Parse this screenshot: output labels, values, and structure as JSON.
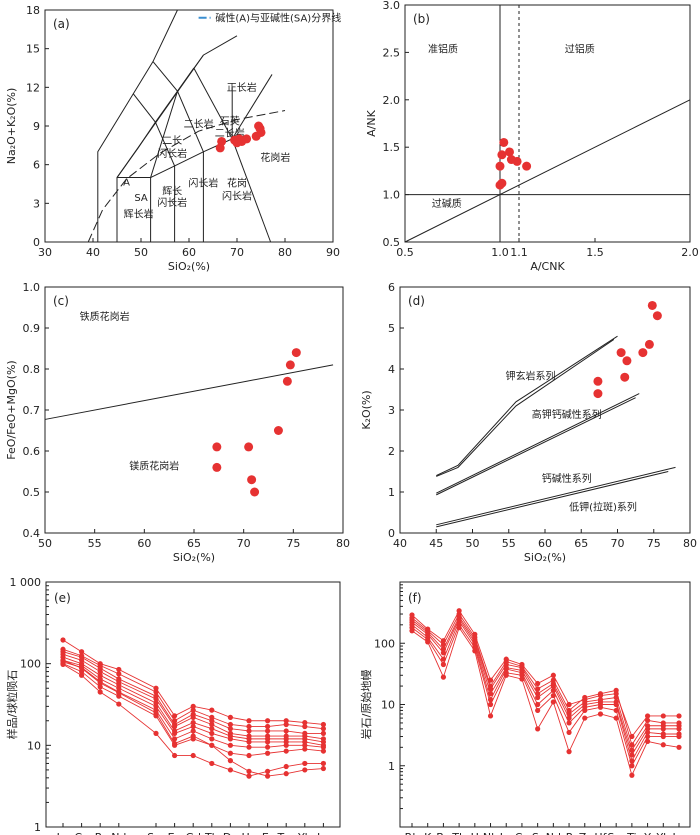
{
  "chart_data": [
    {
      "id": "a",
      "panel_label": "(a)",
      "type": "scatter",
      "xlabel": "SiO₂(%)",
      "ylabel": "Na₂O+K₂O(%)",
      "xlim": [
        30,
        90
      ],
      "ylim": [
        0,
        18
      ],
      "xticks": [
        30,
        40,
        50,
        60,
        70,
        80,
        90
      ],
      "yticks": [
        0,
        3,
        6,
        9,
        12,
        15,
        18
      ],
      "legend": "碱性(A)与亚碱性(SA)分界线",
      "points": [
        [
          66.5,
          7.3
        ],
        [
          66.8,
          7.8
        ],
        [
          69.5,
          7.9
        ],
        [
          70.0,
          7.7
        ],
        [
          70.5,
          8.0
        ],
        [
          71.0,
          7.8
        ],
        [
          72.0,
          8.0
        ],
        [
          74.0,
          8.2
        ],
        [
          74.5,
          9.0
        ],
        [
          74.8,
          8.8
        ],
        [
          75.0,
          8.5
        ]
      ],
      "field_labels": [
        {
          "text": "正长岩",
          "x": 71,
          "y": 11.7
        },
        {
          "text": "二长岩",
          "x": 62,
          "y": 8.9
        },
        {
          "text": "石英",
          "x": 68.5,
          "y": 9.1
        },
        {
          "text": "二长岩",
          "x": 68.5,
          "y": 8.2
        },
        {
          "text": "二长",
          "x": 56.5,
          "y": 7.6
        },
        {
          "text": "闪长岩",
          "x": 56.5,
          "y": 6.6
        },
        {
          "text": "花岗岩",
          "x": 78,
          "y": 6.3
        },
        {
          "text": "A",
          "x": 47,
          "y": 4.4
        },
        {
          "text": "SA",
          "x": 50,
          "y": 3.2
        },
        {
          "text": "辉长",
          "x": 56.5,
          "y": 3.7
        },
        {
          "text": "闪长岩",
          "x": 56.5,
          "y": 2.8
        },
        {
          "text": "辉长岩",
          "x": 49.5,
          "y": 1.9
        },
        {
          "text": "闪长岩",
          "x": 63,
          "y": 4.3
        },
        {
          "text": "花岗",
          "x": 70,
          "y": 4.3
        },
        {
          "text": "闪长岩",
          "x": 70,
          "y": 3.3
        }
      ]
    },
    {
      "id": "b",
      "panel_label": "(b)",
      "type": "scatter",
      "xlabel": "A/CNK",
      "ylabel": "A/NK",
      "xlim": [
        0.5,
        2.0
      ],
      "ylim": [
        0.5,
        3.0
      ],
      "xticks": [
        0.5,
        1.0,
        1.1,
        1.5,
        2.0
      ],
      "xtick_labels": [
        "0.5",
        "1.0",
        "1.1",
        "1.5",
        "2.0"
      ],
      "yticks": [
        0.5,
        1.0,
        1.5,
        2.0,
        2.5,
        3.0
      ],
      "ytick_labels": [
        "0.5",
        "1.0",
        "1.5",
        "2.0",
        "2.5",
        "3.0"
      ],
      "points": [
        [
          1.02,
          1.55
        ],
        [
          1.01,
          1.42
        ],
        [
          1.05,
          1.45
        ],
        [
          1.06,
          1.37
        ],
        [
          1.09,
          1.35
        ],
        [
          1.0,
          1.3
        ],
        [
          1.01,
          1.12
        ],
        [
          1.0,
          1.1
        ],
        [
          1.14,
          1.3
        ]
      ],
      "field_labels": [
        {
          "text": "准铝质",
          "x": 0.7,
          "y": 2.5
        },
        {
          "text": "过铝质",
          "x": 1.42,
          "y": 2.5
        },
        {
          "text": "过碱质",
          "x": 0.72,
          "y": 0.87
        }
      ]
    },
    {
      "id": "c",
      "panel_label": "(c)",
      "type": "scatter",
      "xlabel": "SiO₂(%)",
      "ylabel": "FeO/FeO+MgO(%)",
      "xlim": [
        50,
        80
      ],
      "ylim": [
        0.4,
        1.0
      ],
      "xticks": [
        50,
        55,
        60,
        65,
        70,
        75,
        80
      ],
      "yticks": [
        0.4,
        0.5,
        0.6,
        0.7,
        0.8,
        0.9,
        1.0
      ],
      "ytick_labels": [
        "0.4",
        "0.5",
        "0.6",
        "0.7",
        "0.8",
        "0.9",
        "1.0"
      ],
      "points": [
        [
          67.3,
          0.61
        ],
        [
          67.3,
          0.56
        ],
        [
          70.5,
          0.61
        ],
        [
          70.8,
          0.53
        ],
        [
          71.1,
          0.5
        ],
        [
          73.5,
          0.65
        ],
        [
          74.4,
          0.77
        ],
        [
          74.7,
          0.81
        ],
        [
          75.3,
          0.84
        ]
      ],
      "field_labels": [
        {
          "text": "铁质花岗岩",
          "x": 56,
          "y": 0.92
        },
        {
          "text": "镁质花岗岩",
          "x": 61,
          "y": 0.555
        }
      ]
    },
    {
      "id": "d",
      "panel_label": "(d)",
      "type": "scatter",
      "xlabel": "SiO₂(%)",
      "ylabel": "K₂O(%)",
      "xlim": [
        40,
        80
      ],
      "ylim": [
        0,
        6
      ],
      "xticks": [
        40,
        45,
        50,
        55,
        60,
        65,
        70,
        75,
        80
      ],
      "yticks": [
        0,
        1,
        2,
        3,
        4,
        5,
        6
      ],
      "points": [
        [
          67.3,
          3.7
        ],
        [
          67.3,
          3.4
        ],
        [
          70.5,
          4.4
        ],
        [
          71.0,
          3.8
        ],
        [
          71.3,
          4.2
        ],
        [
          73.5,
          4.4
        ],
        [
          74.4,
          4.6
        ],
        [
          74.8,
          5.55
        ],
        [
          75.5,
          5.3
        ]
      ],
      "field_labels": [
        {
          "text": "钾玄岩系列",
          "x": 58,
          "y": 3.75
        },
        {
          "text": "高钾钙碱性系列",
          "x": 63,
          "y": 2.8
        },
        {
          "text": "钙碱性系列",
          "x": 63,
          "y": 1.25
        },
        {
          "text": "低钾(拉斑)系列",
          "x": 68,
          "y": 0.55
        }
      ]
    },
    {
      "id": "e",
      "panel_label": "(e)",
      "type": "line",
      "ylabel": "样品/球粒陨石",
      "yscale": "log",
      "ylim": [
        1,
        1000
      ],
      "yticks": [
        1,
        10,
        100,
        1000
      ],
      "ytick_labels": [
        "1",
        "10",
        "100",
        "1 000"
      ],
      "categories": [
        "La",
        "Ce",
        "Pr",
        "Nd",
        "Sm",
        "Eu",
        "Gd",
        "Tb",
        "Dy",
        "Ho",
        "Er",
        "Tm",
        "Yb",
        "Lu"
      ],
      "category_positions": [
        0,
        1,
        2,
        3,
        5,
        6,
        7,
        8,
        9,
        10,
        11,
        12,
        13,
        14
      ],
      "series": [
        {
          "values": [
            195,
            140,
            100,
            85,
            50,
            23,
            30,
            27,
            22,
            20,
            20,
            20,
            19,
            18
          ]
        },
        {
          "values": [
            150,
            125,
            95,
            75,
            45,
            20,
            27,
            22,
            18,
            17,
            17,
            18,
            17,
            16
          ]
        },
        {
          "values": [
            140,
            120,
            88,
            65,
            40,
            18,
            24,
            20,
            16,
            15,
            15,
            15,
            14,
            14
          ]
        },
        {
          "values": [
            130,
            110,
            80,
            60,
            37,
            17,
            22,
            18,
            14,
            13,
            13,
            13,
            13,
            12
          ]
        },
        {
          "values": [
            120,
            100,
            72,
            55,
            33,
            15,
            19,
            16,
            13,
            12,
            12,
            12,
            12,
            11
          ]
        },
        {
          "values": [
            110,
            95,
            65,
            50,
            30,
            14,
            17,
            14,
            12,
            11,
            11,
            11,
            11,
            10
          ]
        },
        {
          "values": [
            105,
            90,
            60,
            45,
            27,
            12,
            15,
            12,
            10,
            9.5,
            9.5,
            10,
            10,
            9.5
          ]
        },
        {
          "values": [
            100,
            80,
            52,
            40,
            23,
            10,
            12,
            10,
            8,
            7.5,
            8,
            8.5,
            9,
            8.5
          ]
        },
        {
          "values": [
            98,
            72,
            45,
            32,
            14,
            7.5,
            7.5,
            6,
            5,
            4.2,
            4.8,
            5.5,
            6,
            6
          ]
        },
        {
          "values": [
            110,
            88,
            58,
            44,
            25,
            10.5,
            13,
            10,
            6.5,
            4.8,
            4.2,
            4.5,
            5,
            5.2
          ]
        }
      ]
    },
    {
      "id": "f",
      "panel_label": "(f)",
      "type": "line",
      "ylabel": "岩石/原始地幔",
      "yscale": "log",
      "ylim": [
        0.1,
        1000
      ],
      "yticks": [
        1,
        10,
        100
      ],
      "ytick_labels": [
        "1",
        "10",
        "100"
      ],
      "categories": [
        "Rb",
        "K",
        "Ba",
        "Th",
        "U",
        "Nb",
        "La",
        "Ce",
        "Sr",
        "Nd",
        "P",
        "Zr",
        "Hf",
        "Sm",
        "Ti",
        "Y",
        "Yb",
        "Lu"
      ],
      "series": [
        {
          "values": [
            290,
            170,
            110,
            340,
            140,
            25,
            55,
            45,
            22,
            30,
            10,
            12,
            14,
            15,
            3.0,
            6.5,
            6.5,
            6.5
          ]
        },
        {
          "values": [
            260,
            160,
            95,
            300,
            125,
            20,
            50,
            42,
            18,
            25,
            8,
            13,
            15,
            17,
            2.2,
            5.5,
            5,
            5
          ]
        },
        {
          "values": [
            240,
            150,
            80,
            270,
            115,
            18,
            45,
            40,
            15,
            22,
            7,
            11,
            12,
            13,
            1.8,
            4.5,
            4.5,
            4.5
          ]
        },
        {
          "values": [
            220,
            140,
            70,
            250,
            105,
            15,
            40,
            36,
            13,
            20,
            6,
            10,
            11,
            11,
            1.5,
            4,
            4,
            4
          ]
        },
        {
          "values": [
            200,
            125,
            55,
            230,
            95,
            12,
            38,
            33,
            10,
            17,
            5,
            9,
            10,
            10,
            1.2,
            3.5,
            3.3,
            3.3
          ]
        },
        {
          "values": [
            180,
            115,
            45,
            200,
            85,
            10,
            33,
            30,
            8,
            14,
            3.5,
            8,
            9,
            8,
            1.0,
            3,
            3,
            3
          ]
        },
        {
          "values": [
            160,
            105,
            28,
            180,
            75,
            6.5,
            30,
            26,
            4,
            11,
            1.7,
            6,
            7,
            6,
            0.7,
            2.5,
            2.2,
            2
          ]
        }
      ]
    }
  ]
}
